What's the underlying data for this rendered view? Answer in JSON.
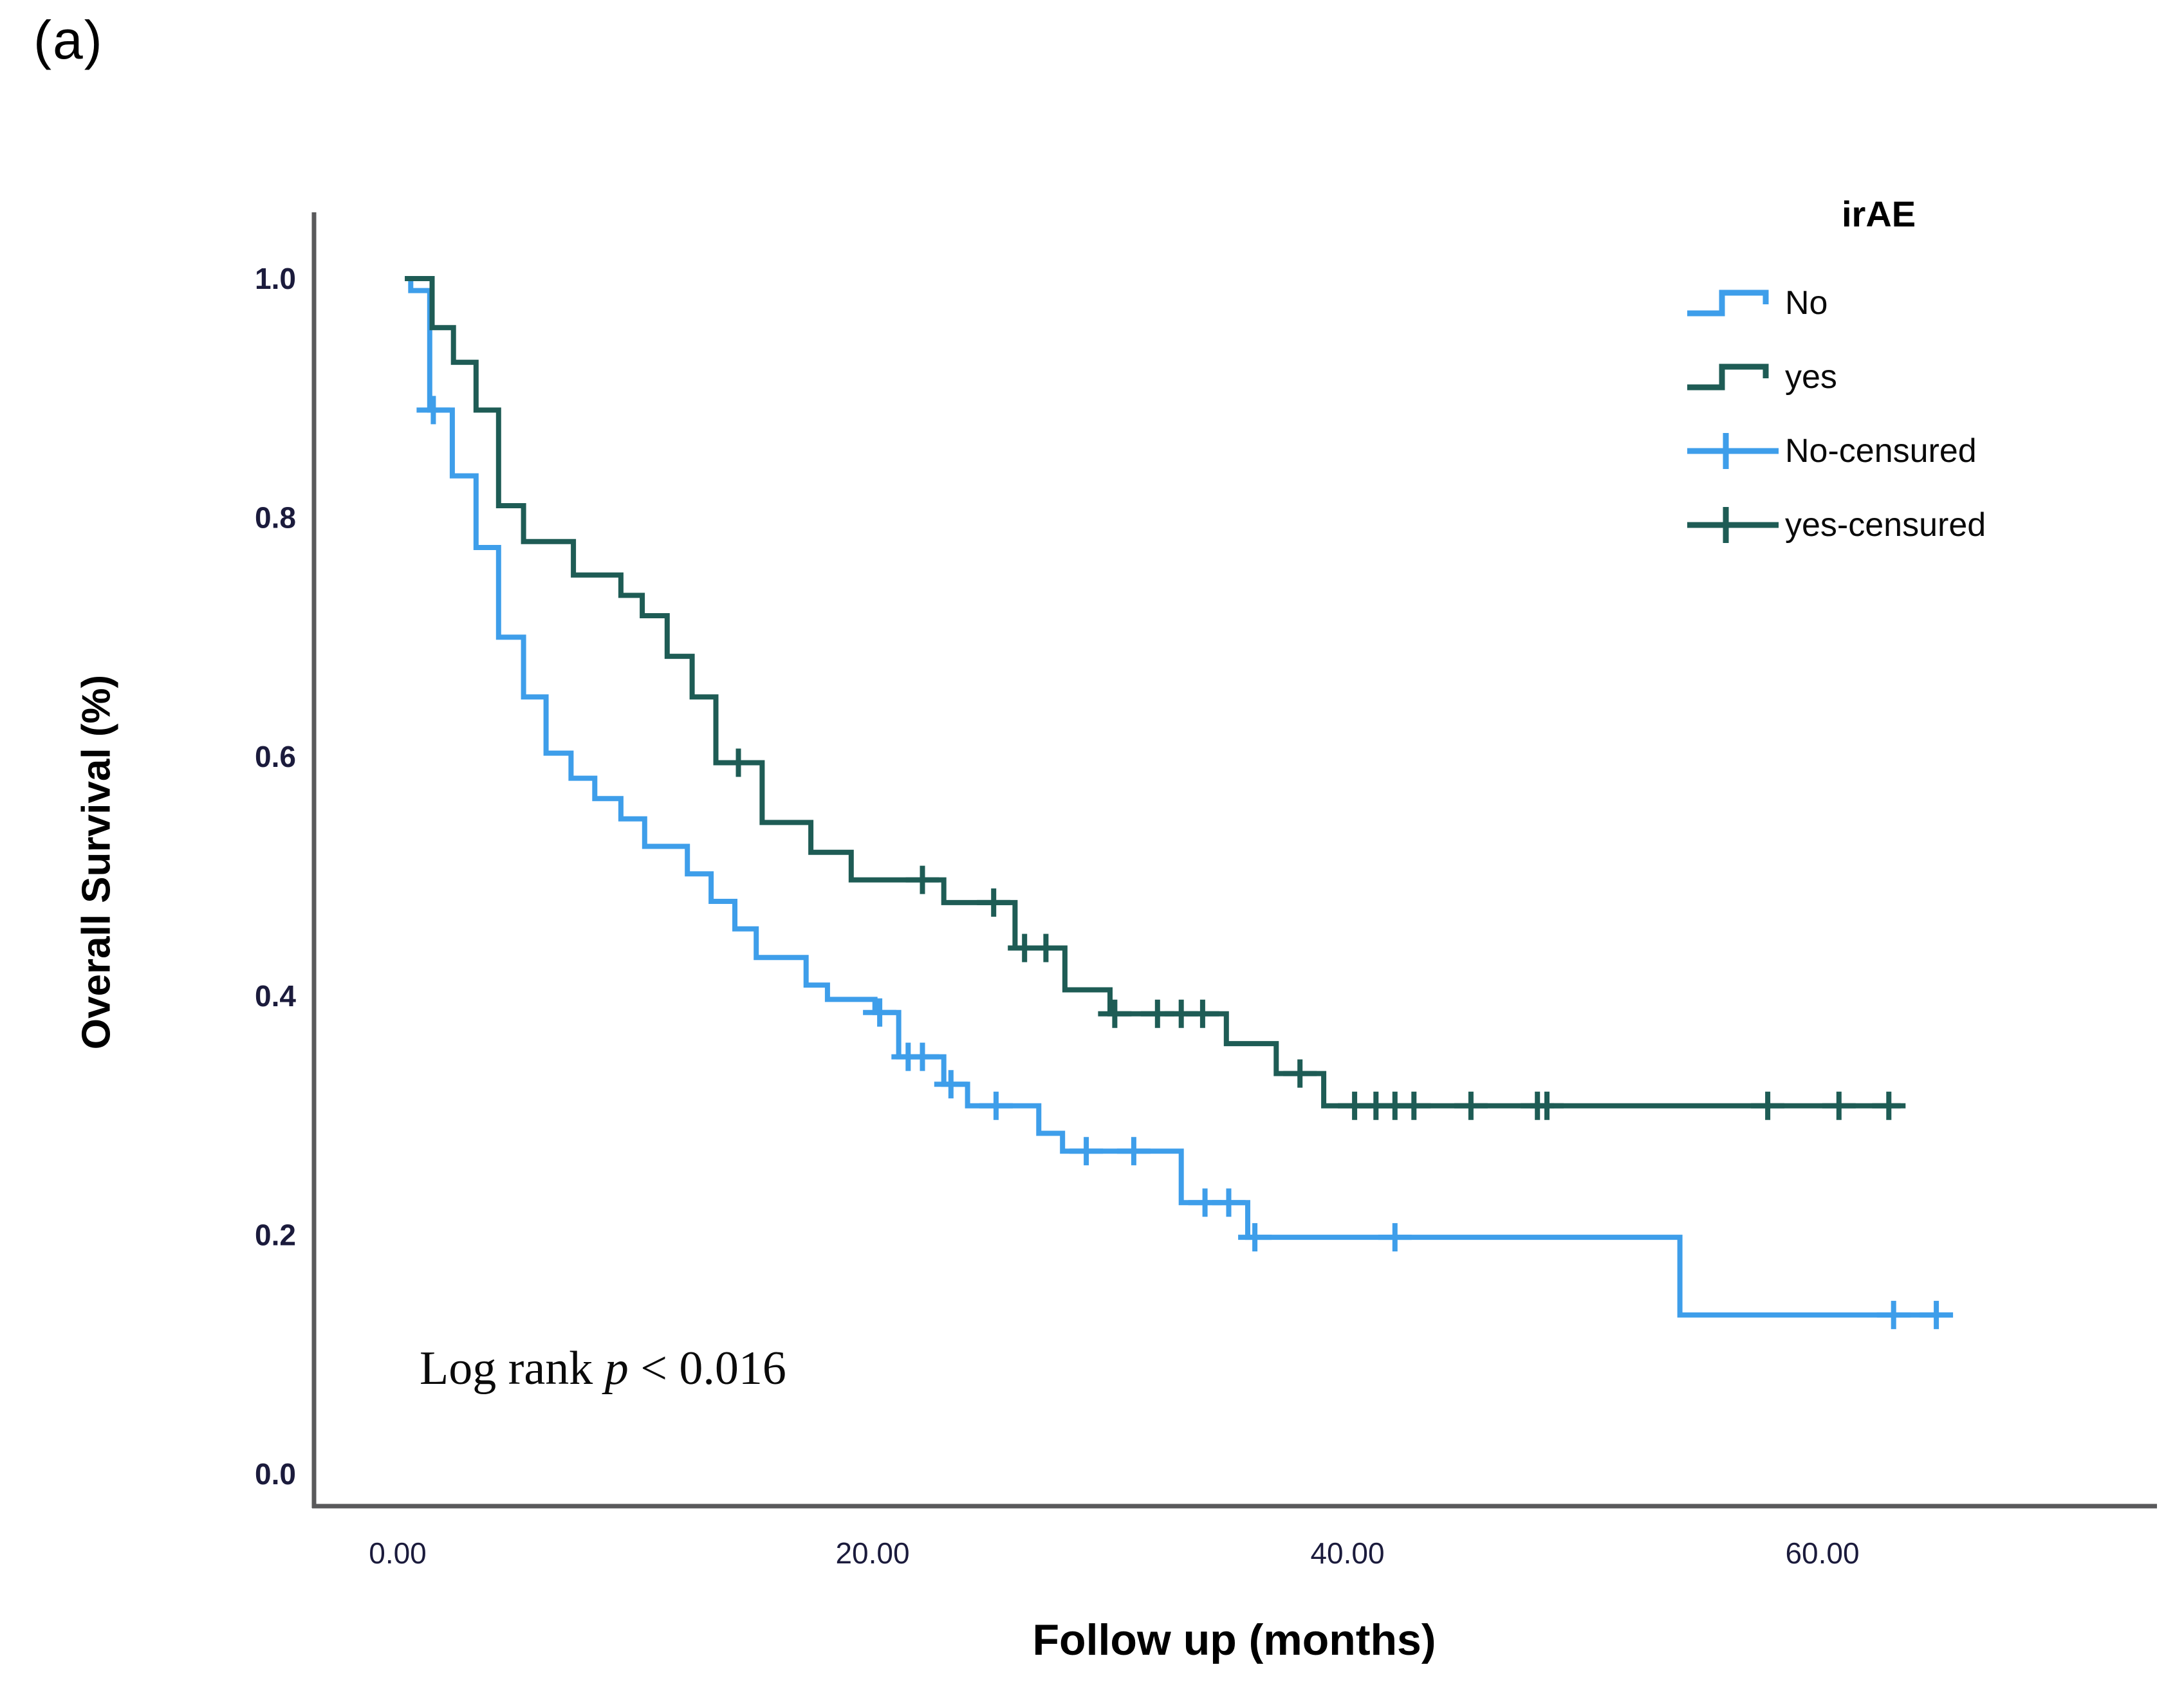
{
  "panel_label": "(a)",
  "axis_titles": {
    "y": "Overall Survival (%)",
    "x": "Follow up (months)"
  },
  "annotation": {
    "prefix": "Log rank ",
    "p": "p",
    "rest": " < 0.016",
    "full_text": "Log rank p < 0.016"
  },
  "legend": {
    "title": "irAE",
    "items": [
      {
        "label": "No",
        "type": "step",
        "color": "#3E9EEA"
      },
      {
        "label": "yes",
        "type": "step",
        "color": "#1E5C55"
      },
      {
        "label": "No-censured",
        "type": "censor",
        "color": "#3E9EEA"
      },
      {
        "label": "yes-censured",
        "type": "censor",
        "color": "#1E5C55"
      }
    ]
  },
  "colors": {
    "no_curve": "#3E9EEA",
    "yes_curve": "#1E5C55",
    "axis": "#59595B",
    "tick_text": "#1B1B3C"
  },
  "chart_data": {
    "type": "line",
    "subtype": "kaplan-meier-step",
    "xlabel": "Follow up (months)",
    "ylabel": "Overall Survival (%)",
    "xlim": [
      0,
      74
    ],
    "ylim": [
      0,
      1.05
    ],
    "grid": false,
    "legend_position": "top-right",
    "x_ticks": [
      {
        "value": 0,
        "label": "0.00"
      },
      {
        "value": 20,
        "label": "20.00"
      },
      {
        "value": 40,
        "label": "40.00"
      },
      {
        "value": 60,
        "label": "60.00"
      }
    ],
    "y_ticks": [
      {
        "value": 1.0,
        "label": "1.0"
      },
      {
        "value": 0.8,
        "label": "0.8"
      },
      {
        "value": 0.6,
        "label": "0.6"
      },
      {
        "value": 0.4,
        "label": "0.4"
      },
      {
        "value": 0.2,
        "label": "0.2"
      },
      {
        "value": 0.0,
        "label": "0.0"
      }
    ],
    "series": [
      {
        "name": "No",
        "color": "#3E9EEA",
        "end_time": 65.5,
        "steps": [
          [
            0.3,
            1.0
          ],
          [
            0.55,
            0.99
          ],
          [
            1.35,
            0.89
          ],
          [
            2.3,
            0.835
          ],
          [
            3.3,
            0.775
          ],
          [
            4.25,
            0.7
          ],
          [
            5.3,
            0.65
          ],
          [
            6.25,
            0.603
          ],
          [
            7.3,
            0.582
          ],
          [
            8.3,
            0.565
          ],
          [
            9.4,
            0.548
          ],
          [
            10.4,
            0.525
          ],
          [
            12.2,
            0.502
          ],
          [
            13.2,
            0.479
          ],
          [
            14.2,
            0.456
          ],
          [
            15.1,
            0.432
          ],
          [
            17.2,
            0.409
          ],
          [
            18.1,
            0.397
          ],
          [
            20.1,
            0.386
          ],
          [
            21.1,
            0.349
          ],
          [
            23.0,
            0.326
          ],
          [
            24.0,
            0.308
          ],
          [
            27.0,
            0.285
          ],
          [
            28.0,
            0.27
          ],
          [
            33.0,
            0.227
          ],
          [
            35.8,
            0.198
          ],
          [
            54.0,
            0.133
          ]
        ],
        "censors": [
          [
            1.5,
            0.89
          ],
          [
            20.3,
            0.386
          ],
          [
            21.5,
            0.349
          ],
          [
            22.1,
            0.349
          ],
          [
            23.3,
            0.326
          ],
          [
            25.2,
            0.308
          ],
          [
            29.0,
            0.27
          ],
          [
            31.0,
            0.27
          ],
          [
            34.0,
            0.227
          ],
          [
            35.0,
            0.227
          ],
          [
            36.1,
            0.198
          ],
          [
            42.0,
            0.198
          ],
          [
            63.0,
            0.133
          ],
          [
            64.8,
            0.133
          ]
        ]
      },
      {
        "name": "yes",
        "color": "#1E5C55",
        "end_time": 63.3,
        "steps": [
          [
            0.3,
            1.0
          ],
          [
            1.45,
            0.959
          ],
          [
            2.35,
            0.93
          ],
          [
            3.3,
            0.89
          ],
          [
            4.25,
            0.81
          ],
          [
            5.3,
            0.78
          ],
          [
            7.4,
            0.752
          ],
          [
            9.4,
            0.735
          ],
          [
            10.3,
            0.718
          ],
          [
            11.35,
            0.684
          ],
          [
            12.4,
            0.65
          ],
          [
            13.4,
            0.595
          ],
          [
            15.35,
            0.545
          ],
          [
            17.4,
            0.52
          ],
          [
            19.1,
            0.497
          ],
          [
            23.0,
            0.478
          ],
          [
            26.0,
            0.44
          ],
          [
            28.1,
            0.405
          ],
          [
            30.0,
            0.385
          ],
          [
            34.9,
            0.36
          ],
          [
            37.0,
            0.335
          ],
          [
            39.0,
            0.308
          ]
        ],
        "censors": [
          [
            14.35,
            0.595
          ],
          [
            22.1,
            0.497
          ],
          [
            25.1,
            0.478
          ],
          [
            26.4,
            0.44
          ],
          [
            27.3,
            0.44
          ],
          [
            30.2,
            0.385
          ],
          [
            32.0,
            0.385
          ],
          [
            33.0,
            0.385
          ],
          [
            33.9,
            0.385
          ],
          [
            38.0,
            0.335
          ],
          [
            40.3,
            0.308
          ],
          [
            41.2,
            0.308
          ],
          [
            42.0,
            0.308
          ],
          [
            42.8,
            0.308
          ],
          [
            45.2,
            0.308
          ],
          [
            48.0,
            0.308
          ],
          [
            48.4,
            0.308
          ],
          [
            57.7,
            0.308
          ],
          [
            60.7,
            0.308
          ],
          [
            62.8,
            0.308
          ]
        ]
      }
    ],
    "annotation": "Log rank p < 0.016"
  }
}
